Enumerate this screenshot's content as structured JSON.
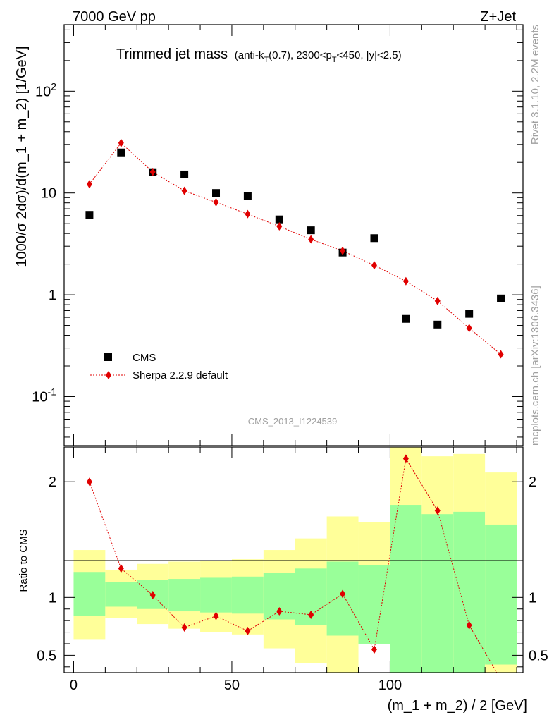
{
  "header": {
    "left": "7000 GeV pp",
    "right": "Z+Jet"
  },
  "side_text": {
    "version": "Rivet 3.1.10,  2.2M events",
    "source": "mcplots.cern.ch [arXiv:1306.3436]"
  },
  "colors": {
    "data": "#000000",
    "mc": "#e00000",
    "band_inner": "#99ff99",
    "band_outer": "#ffff99",
    "grey_text": "#a0a0a0"
  },
  "chart_data": [
    {
      "type": "scatter",
      "title": "Trimmed jet mass",
      "subtitle_parts": [
        "(anti-k",
        "T",
        "(0.7), 2300<p",
        "T",
        "<450, |y|<2.5)"
      ],
      "ylabel": "1000/σ 2dσ)/d(m_1 + m_2) [1/GeV]",
      "yscale": "log",
      "ylim": [
        0.033,
        450
      ],
      "xlim": [
        -3,
        142
      ],
      "ytick_labels": [
        "10^-1",
        "1",
        "10",
        "10^2"
      ],
      "watermark": "CMS_2013_I1224539",
      "legend": {
        "position": "lower-left",
        "entries": [
          "CMS",
          "Sherpa 2.2.9 default"
        ]
      },
      "x": [
        5,
        15,
        25,
        35,
        45,
        55,
        65,
        75,
        85,
        95,
        105,
        115,
        125,
        135
      ],
      "series": [
        {
          "name": "CMS",
          "marker": "square",
          "values": [
            6.1,
            25,
            16,
            15.2,
            10,
            9.3,
            5.5,
            4.3,
            2.6,
            3.6,
            0.58,
            0.51,
            0.65,
            0.92
          ]
        },
        {
          "name": "Sherpa 2.2.9 default",
          "marker": "diamond",
          "line": "dotted",
          "values": [
            12.2,
            31,
            16.1,
            10.5,
            8.1,
            6.2,
            4.7,
            3.5,
            2.7,
            1.95,
            1.36,
            0.87,
            0.47,
            0.26
          ]
        }
      ]
    },
    {
      "type": "line",
      "ylabel": "Ratio to CMS",
      "xlabel": "(m_1 + m_2) / 2 [GeV]",
      "xlim": [
        -3,
        142
      ],
      "ylim": [
        0.35,
        2.3
      ],
      "xticks": [
        0,
        50,
        100
      ],
      "yticks": [
        0.5,
        1,
        2
      ],
      "bin_edges": [
        0,
        10,
        20,
        30,
        40,
        50,
        60,
        70,
        80,
        90,
        100,
        110,
        120,
        130,
        140
      ],
      "band_inner": {
        "lo": [
          0.84,
          0.92,
          0.9,
          0.88,
          0.87,
          0.86,
          0.81,
          0.76,
          0.67,
          0.6,
          0.35,
          0.35,
          0.35,
          0.42
        ],
        "hi": [
          1.22,
          1.13,
          1.15,
          1.16,
          1.17,
          1.18,
          1.21,
          1.25,
          1.31,
          1.28,
          1.8,
          1.72,
          1.74,
          1.63
        ]
      },
      "band_outer": {
        "lo": [
          0.64,
          0.82,
          0.77,
          0.73,
          0.7,
          0.68,
          0.56,
          0.43,
          0.35,
          0.72,
          0.35,
          0.35,
          0.35,
          0.35
        ],
        "hi": [
          1.41,
          1.24,
          1.29,
          1.31,
          1.32,
          1.33,
          1.41,
          1.51,
          1.7,
          1.65,
          2.3,
          2.22,
          2.24,
          2.08
        ]
      },
      "series": [
        {
          "name": "Sherpa 2.2.9 default",
          "x": [
            5,
            15,
            25,
            35,
            45,
            55,
            65,
            75,
            85,
            95,
            105,
            115,
            125,
            135
          ],
          "values": [
            2.0,
            1.25,
            1.02,
            0.74,
            0.84,
            0.71,
            0.88,
            0.85,
            1.03,
            0.55,
            2.2,
            1.75,
            0.76,
            0.29
          ]
        }
      ]
    }
  ]
}
